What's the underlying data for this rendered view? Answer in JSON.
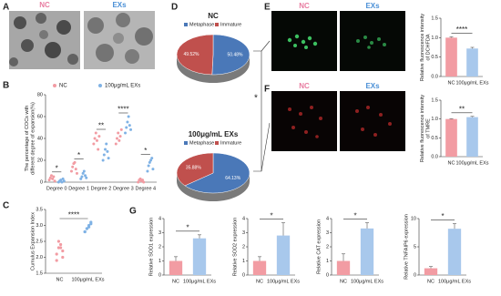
{
  "figure": {
    "letters": [
      "A",
      "B",
      "C",
      "D",
      "E",
      "F",
      "G"
    ],
    "A_labels": [
      "NC",
      "EXs"
    ],
    "E_labels": [
      "NC",
      "EXs"
    ],
    "F_labels": [
      "NC",
      "EXs"
    ],
    "D_significance": "*"
  },
  "chart_data": [
    {
      "type": "strip",
      "ylabel": [
        "The percentage of COCs with",
        "different degree of expansion(%)"
      ],
      "categories": [
        "Degree 0",
        "Degree 1",
        "Degree 2",
        "Degree 3",
        "Degree 4"
      ],
      "series": [
        {
          "name": "NC",
          "color": "#f29ca3",
          "values": [
            [
              2,
              4,
              6,
              3,
              5,
              1
            ],
            [
              10,
              14,
              17,
              18,
              12,
              8
            ],
            [
              35,
              40,
              45,
              38,
              30,
              42
            ],
            [
              35,
              40,
              45,
              38,
              42,
              48
            ],
            [
              0,
              2,
              3,
              1,
              2,
              0
            ]
          ]
        },
        {
          "name": "100μg/mL EXs",
          "color": "#7fb2e5",
          "values": [
            [
              0,
              1,
              2,
              0,
              3,
              1
            ],
            [
              3,
              5,
              8,
              10,
              6,
              4
            ],
            [
              20,
              25,
              30,
              35,
              28,
              22
            ],
            [
              45,
              50,
              55,
              60,
              52,
              48
            ],
            [
              10,
              15,
              18,
              20,
              22,
              12
            ]
          ]
        }
      ],
      "significance": [
        "*",
        "*",
        "**",
        "****",
        "*"
      ],
      "ylim": [
        0,
        80
      ],
      "yticks": [
        0,
        20,
        40,
        60,
        80
      ]
    },
    {
      "type": "dot",
      "ylabel": "Cumulus Expansion Index",
      "categories": [
        "NC",
        "100μg/mL EXs"
      ],
      "colors": [
        "#f29ca3",
        "#7fb2e5"
      ],
      "values": [
        [
          2.1,
          2.3,
          2.4,
          2.0,
          1.9,
          2.5,
          2.3,
          2.2
        ],
        [
          2.8,
          2.9,
          3.0,
          3.1,
          2.8,
          2.9,
          2.95,
          3.05
        ]
      ],
      "annotation": "****",
      "ylim": [
        1.5,
        3.5
      ],
      "yticks": [
        1.5,
        {
          "value": 2,
          "label": "2.0"
        },
        2.5,
        {
          "value": 3,
          "label": "3.0"
        },
        3.5
      ]
    },
    {
      "type": "pie",
      "title": "NC",
      "categories": [
        "Metaphase",
        "Immature"
      ],
      "values": [
        50.48,
        49.52
      ],
      "value_labels": [
        "50.48%",
        "49.52%"
      ],
      "colors": [
        "#4a78b8",
        "#c0504d"
      ]
    },
    {
      "type": "pie",
      "title": "100μg/mL EXs",
      "categories": [
        "Metaphase",
        "Immature"
      ],
      "values": [
        64.13,
        35.88
      ],
      "value_labels": [
        "64.13%",
        "35.88%"
      ],
      "colors": [
        "#4a78b8",
        "#c0504d"
      ]
    },
    {
      "type": "bar",
      "ylabel": [
        "Relative fluorescence intensity",
        "of DCHFDA"
      ],
      "categories": [
        "NC",
        "100μg/mL EXs"
      ],
      "values": [
        1.0,
        0.72
      ],
      "errors": [
        0.02,
        0.03
      ],
      "colors": [
        "#f29ca3",
        "#a8c8ec"
      ],
      "annotation": "****",
      "ylim": [
        0,
        1.5
      ],
      "yticks": [
        {
          "value": 0,
          "label": "0.0"
        },
        0.5,
        {
          "value": 1,
          "label": "1.0"
        },
        1.5
      ]
    },
    {
      "type": "bar",
      "ylabel": [
        "Relative fluorescence intensity",
        "of TMRE"
      ],
      "categories": [
        "NC",
        "100μg/mL EXs"
      ],
      "values": [
        1.0,
        1.05
      ],
      "errors": [
        0.01,
        0.02
      ],
      "colors": [
        "#f29ca3",
        "#a8c8ec"
      ],
      "annotation": "**",
      "ylim": [
        0,
        1.5
      ],
      "yticks": [
        {
          "value": 0,
          "label": "0.0"
        },
        0.5,
        {
          "value": 1,
          "label": "1.0"
        },
        1.5
      ]
    },
    {
      "type": "bar",
      "ylabel": "Relative SOD1 expression",
      "categories": [
        "NC",
        "100μg/mL EXs"
      ],
      "values": [
        1.0,
        2.6
      ],
      "errors": [
        0.3,
        0.25
      ],
      "colors": [
        "#f29ca3",
        "#a8c8ec"
      ],
      "annotation": "*",
      "ylim": [
        0,
        4
      ],
      "yticks": [
        0,
        1,
        2,
        3,
        4
      ]
    },
    {
      "type": "bar",
      "ylabel": "Relative SOD2 expression",
      "categories": [
        "NC",
        "100μg/mL EXs"
      ],
      "values": [
        1.0,
        2.8
      ],
      "errors": [
        0.3,
        0.9
      ],
      "colors": [
        "#f29ca3",
        "#a8c8ec"
      ],
      "annotation": "*",
      "ylim": [
        0,
        4
      ],
      "yticks": [
        0,
        1,
        2,
        3,
        4
      ]
    },
    {
      "type": "bar",
      "ylabel": "Relative CAT expression",
      "categories": [
        "NC",
        "100μg/mL EXs"
      ],
      "values": [
        1.0,
        3.3
      ],
      "errors": [
        0.5,
        0.4
      ],
      "colors": [
        "#f29ca3",
        "#a8c8ec"
      ],
      "annotation": "*",
      "ylim": [
        0,
        4
      ],
      "yticks": [
        0,
        1,
        2,
        3,
        4
      ]
    },
    {
      "type": "bar",
      "ylabel": "Relative TNFAIP6 expression",
      "categories": [
        "NC",
        "100μg/mL EXs"
      ],
      "values": [
        1.2,
        8.2
      ],
      "errors": [
        0.3,
        0.9
      ],
      "colors": [
        "#f29ca3",
        "#a8c8ec"
      ],
      "annotation": "*",
      "ylim": [
        0,
        10
      ],
      "yticks": [
        0,
        5,
        10
      ]
    }
  ]
}
